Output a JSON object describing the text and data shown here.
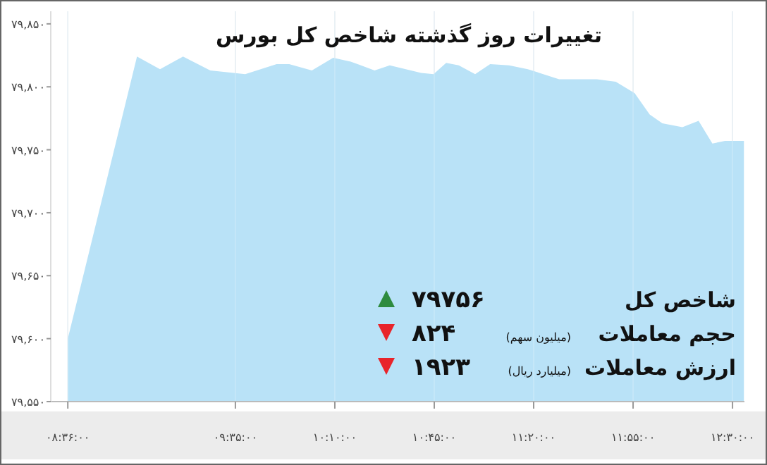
{
  "chart_data": {
    "type": "area",
    "title": "تغییرات روز گذشته شاخص کل بورس",
    "x": [
      8.6,
      9.006,
      9.141,
      9.276,
      9.436,
      9.641,
      9.825,
      9.899,
      10.032,
      10.157,
      10.26,
      10.4,
      10.489,
      10.673,
      10.746,
      10.82,
      10.894,
      10.99,
      11.078,
      11.189,
      11.299,
      11.483,
      11.704,
      11.815,
      11.926,
      12.014,
      12.088,
      12.206,
      12.301,
      12.382,
      12.456,
      12.567
    ],
    "series": [
      {
        "color": "#b9e2f7",
        "values": [
          79600,
          79824,
          79814,
          79824,
          79813,
          79810,
          79818,
          79818,
          79813,
          79823,
          79820,
          79813,
          79817,
          79811,
          79810,
          79819,
          79817,
          79810,
          79818,
          79817,
          79814,
          79806,
          79806,
          79804,
          79795,
          79778,
          79771,
          79768,
          79773,
          79755,
          79757,
          79757
        ]
      }
    ],
    "xlim": [
      8.5,
      12.57
    ],
    "ylim": [
      79550,
      79860
    ],
    "xticks": [
      {
        "value": 8.6,
        "label": "۰۸:۳۶:۰۰"
      },
      {
        "value": 9.5833,
        "label": "۰۹:۳۵:۰۰"
      },
      {
        "value": 10.1667,
        "label": "۱۰:۱۰:۰۰"
      },
      {
        "value": 10.75,
        "label": "۱۰:۴۵:۰۰"
      },
      {
        "value": 11.3333,
        "label": "۱۱:۲۰:۰۰"
      },
      {
        "value": 11.9167,
        "label": "۱۱:۵۵:۰۰"
      },
      {
        "value": 12.5,
        "label": "۱۲:۳۰:۰۰"
      }
    ],
    "yticks": [
      {
        "value": 79550,
        "label": "۷۹,۵۵۰"
      },
      {
        "value": 79600,
        "label": "۷۹,۶۰۰"
      },
      {
        "value": 79650,
        "label": "۷۹,۶۵۰"
      },
      {
        "value": 79700,
        "label": "۷۹,۷۰۰"
      },
      {
        "value": 79750,
        "label": "۷۹,۷۵۰"
      },
      {
        "value": 79800,
        "label": "۷۹,۸۰۰"
      },
      {
        "value": 79850,
        "label": "۷۹,۸۵۰"
      }
    ],
    "grid": "x",
    "annotations": [
      "شاخص کل",
      "۷۹۷۵۶",
      "حجم معاملات",
      "(میلیون سهم)",
      "۸۲۴",
      "ارزش معاملات",
      "(میلیارد ریال)",
      "۱۹۲۳"
    ]
  }
}
